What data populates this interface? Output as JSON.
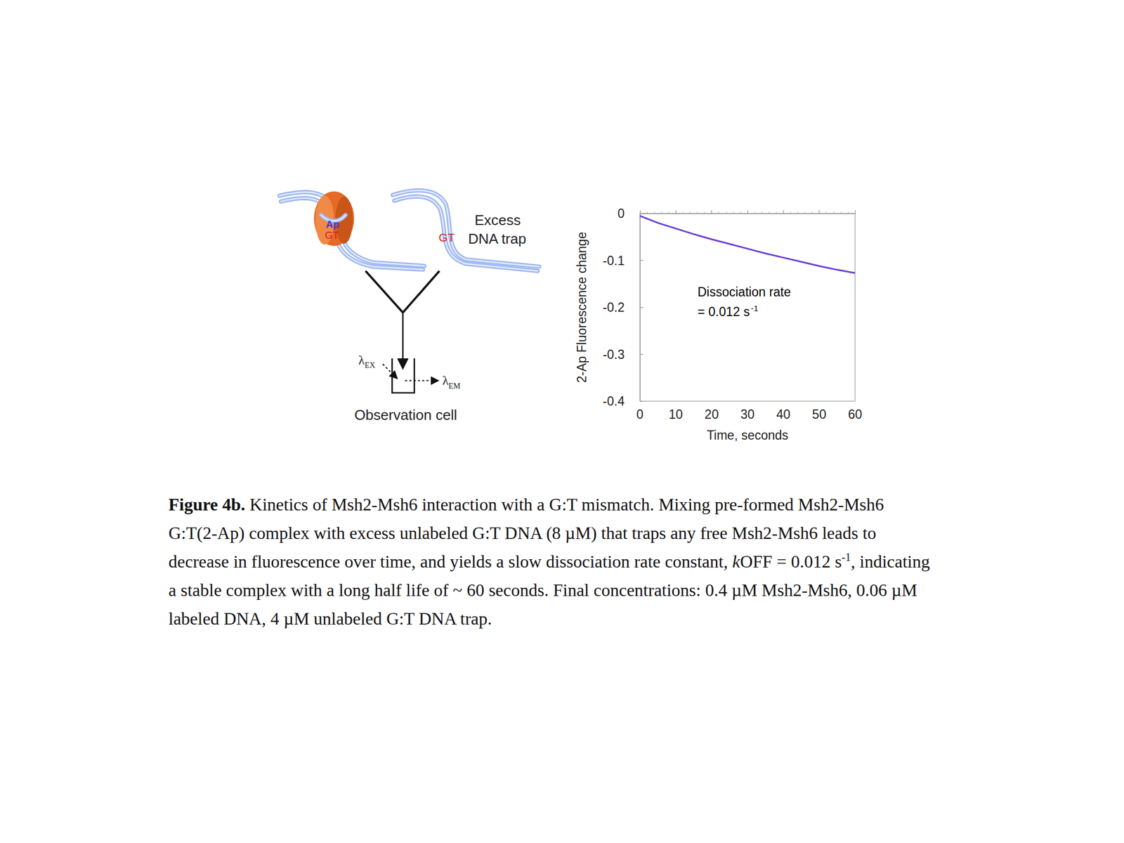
{
  "diagram": {
    "protein_labels": [
      "Ap",
      "GT"
    ],
    "trap_label": "GT",
    "trap_text": [
      "Excess",
      "DNA trap"
    ],
    "excitation": {
      "symbol": "λ",
      "subscript": "EX"
    },
    "emission": {
      "symbol": "λ",
      "subscript": "EM"
    },
    "cell_label": "Observation cell"
  },
  "chart_data": {
    "type": "line",
    "x": [
      0,
      5,
      10,
      15,
      20,
      25,
      30,
      35,
      40,
      45,
      50,
      55,
      60
    ],
    "values": [
      -0.005,
      -0.02,
      -0.032,
      -0.044,
      -0.055,
      -0.065,
      -0.075,
      -0.085,
      -0.094,
      -0.103,
      -0.112,
      -0.12,
      -0.127
    ],
    "color": "#6a3fd6",
    "xlabel": "Time, seconds",
    "ylabel": "2-Ap Fluorescence change",
    "xlim": [
      0,
      60
    ],
    "xticks": [
      0,
      10,
      20,
      30,
      40,
      50,
      60
    ],
    "ylim": [
      -0.4,
      0
    ],
    "yticks": [
      -0.4,
      -0.3,
      -0.2,
      -0.1,
      0
    ],
    "grid": false,
    "annotation": {
      "lines": [
        "Dissociation rate",
        "= 0.012 s"
      ],
      "superscript": "-1"
    }
  },
  "caption": [
    {
      "text": "Figure 4b.",
      "style": "bold"
    },
    {
      "text": " Kinetics of Msh2-Msh6 interaction with a G:T mismatch. Mixing pre-formed Msh2-Msh6 G:T(2-Ap) complex with excess unlabeled G:T DNA (8 µM) that traps any free Msh2-Msh6 leads to decrease in fluorescence over time, and yields a slow dissociation rate constant, ",
      "style": "normal"
    },
    {
      "text": "k",
      "style": "italic"
    },
    {
      "text": "OFF = 0.012 s",
      "style": "normal"
    },
    {
      "text": "-1",
      "style": "superscript"
    },
    {
      "text": ", indicating a stable complex with a long half life of ~ 60 seconds. Final concentrations: 0.4 µM Msh2-Msh6, 0.06 µM labeled DNA, 4 µM unlabeled G:T DNA trap.",
      "style": "normal"
    }
  ]
}
